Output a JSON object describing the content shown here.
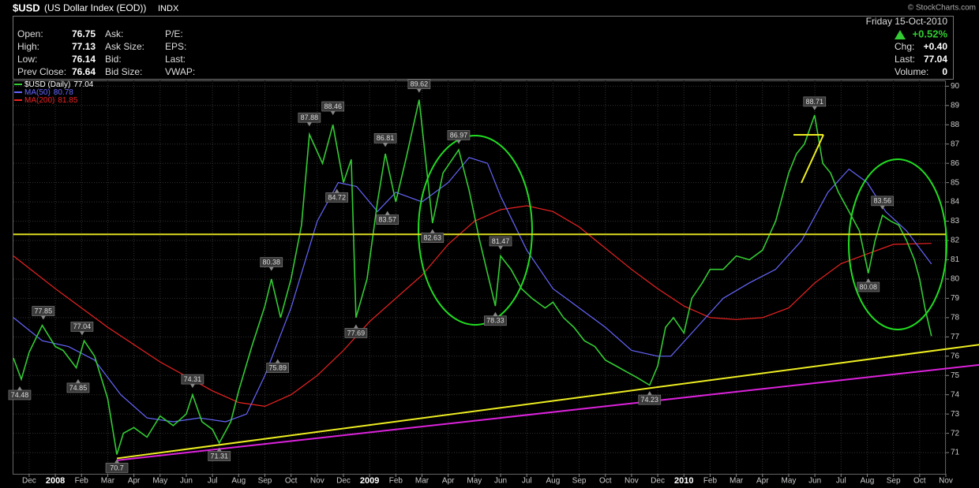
{
  "header": {
    "symbol": "$USD",
    "name": "(US Dollar Index (EOD))",
    "exchange": "INDX",
    "quote": [
      {
        "label": "Open:",
        "value": 76.75
      },
      {
        "label": "High:",
        "value": 77.13
      },
      {
        "label": "Low:",
        "value": 76.14
      },
      {
        "label": "Prev Close:",
        "value": 76.64
      }
    ],
    "fields_a": [
      "Ask:",
      "Ask Size:",
      "Bid:",
      "Bid Size:"
    ],
    "fields_b": [
      "P/E:",
      "EPS:",
      "Last:",
      "VWAP:"
    ],
    "date": "Friday  15-Oct-2010",
    "change_pct": "+0.52%",
    "stats": [
      {
        "label": "Chg:",
        "value": "+0.40"
      },
      {
        "label": "Last:",
        "value": "77.04"
      },
      {
        "label": "Volume:",
        "value": "0"
      }
    ],
    "watermark": "© StockCharts.com"
  },
  "chart_data": {
    "type": "line",
    "xlim": [
      -0.6,
      35.0
    ],
    "ylim": [
      69.9,
      90.3
    ],
    "yticks": [
      71,
      72,
      73,
      74,
      75,
      76,
      77,
      78,
      79,
      80,
      81,
      82,
      83,
      84,
      85,
      86,
      87,
      88,
      89,
      90
    ],
    "xticks": [
      {
        "value": 0,
        "label": "Dec"
      },
      {
        "value": 1,
        "label": "2008"
      },
      {
        "value": 2,
        "label": "Feb"
      },
      {
        "value": 3,
        "label": "Mar"
      },
      {
        "value": 4,
        "label": "Apr"
      },
      {
        "value": 5,
        "label": "May"
      },
      {
        "value": 6,
        "label": "Jun"
      },
      {
        "value": 7,
        "label": "Jul"
      },
      {
        "value": 8,
        "label": "Aug"
      },
      {
        "value": 9,
        "label": "Sep"
      },
      {
        "value": 10,
        "label": "Oct"
      },
      {
        "value": 11,
        "label": "Nov"
      },
      {
        "value": 12,
        "label": "Dec"
      },
      {
        "value": 13,
        "label": "2009"
      },
      {
        "value": 14,
        "label": "Feb"
      },
      {
        "value": 15,
        "label": "Mar"
      },
      {
        "value": 16,
        "label": "Apr"
      },
      {
        "value": 17,
        "label": "May"
      },
      {
        "value": 18,
        "label": "Jun"
      },
      {
        "value": 19,
        "label": "Jul"
      },
      {
        "value": 20,
        "label": "Aug"
      },
      {
        "value": 21,
        "label": "Sep"
      },
      {
        "value": 22,
        "label": "Oct"
      },
      {
        "value": 23,
        "label": "Nov"
      },
      {
        "value": 24,
        "label": "Dec"
      },
      {
        "value": 25,
        "label": "2010"
      },
      {
        "value": 26,
        "label": "Feb"
      },
      {
        "value": 27,
        "label": "Mar"
      },
      {
        "value": 28,
        "label": "Apr"
      },
      {
        "value": 29,
        "label": "May"
      },
      {
        "value": 30,
        "label": "Jun"
      },
      {
        "value": 31,
        "label": "Jul"
      },
      {
        "value": 32,
        "label": "Aug"
      },
      {
        "value": 33,
        "label": "Sep"
      },
      {
        "value": 34,
        "label": "Oct"
      },
      {
        "value": 35,
        "label": "Nov"
      }
    ],
    "grid": true,
    "series": [
      {
        "name": "$USD (Daily)",
        "last": 77.04,
        "color": "#33cc33",
        "x": [
          -0.6,
          -0.3,
          0.0,
          0.5,
          1.0,
          1.3,
          1.8,
          2.1,
          2.5,
          3.0,
          3.35,
          3.6,
          4.0,
          4.5,
          5.0,
          5.5,
          6.0,
          6.24,
          6.6,
          7.0,
          7.26,
          7.7,
          8.0,
          8.5,
          9.0,
          9.25,
          9.6,
          10.0,
          10.4,
          10.7,
          11.2,
          11.6,
          12.0,
          12.3,
          12.48,
          12.9,
          13.3,
          13.6,
          14.0,
          14.4,
          14.89,
          15.4,
          15.8,
          16.4,
          16.8,
          17.2,
          17.8,
          18.0,
          18.4,
          18.8,
          19.2,
          19.7,
          20.0,
          20.4,
          20.8,
          21.2,
          21.6,
          22.0,
          22.4,
          22.8,
          23.2,
          23.69,
          24.0,
          24.3,
          24.6,
          25.0,
          25.3,
          25.7,
          26.0,
          26.5,
          27.0,
          27.5,
          28.0,
          28.5,
          29.0,
          29.3,
          29.6,
          29.99,
          30.3,
          30.6,
          30.9,
          31.3,
          31.7,
          32.04,
          32.3,
          32.58,
          32.9,
          33.2,
          33.5,
          33.8,
          34.0,
          34.2,
          34.45
        ],
        "values": [
          75.9,
          74.8,
          76.2,
          77.6,
          76.5,
          76.3,
          75.4,
          76.8,
          76.0,
          73.8,
          70.9,
          72.0,
          72.3,
          71.8,
          72.9,
          72.4,
          73.0,
          74.0,
          72.6,
          72.2,
          71.5,
          72.6,
          74.2,
          76.5,
          78.6,
          80.0,
          78.0,
          80.0,
          82.8,
          87.5,
          86.0,
          88.0,
          85.0,
          86.2,
          78.0,
          80.0,
          84.0,
          86.5,
          84.0,
          86.3,
          89.3,
          82.9,
          85.5,
          86.7,
          84.6,
          82.0,
          78.6,
          81.2,
          80.5,
          79.5,
          79.0,
          78.5,
          78.8,
          78.0,
          77.5,
          76.8,
          76.5,
          75.8,
          75.5,
          75.2,
          74.9,
          74.5,
          75.5,
          77.5,
          78.0,
          77.2,
          79.0,
          79.8,
          80.5,
          80.5,
          81.2,
          81.0,
          81.5,
          83.0,
          85.5,
          86.5,
          87.0,
          88.5,
          86.0,
          85.5,
          84.5,
          83.5,
          82.5,
          80.3,
          82.0,
          83.3,
          83.0,
          82.8,
          82.0,
          81.0,
          80.0,
          78.5,
          77.04
        ]
      },
      {
        "name": "MA(50)",
        "last": 80.78,
        "color": "#6666ff",
        "x": [
          -0.6,
          0.5,
          1.5,
          2.5,
          3.5,
          4.5,
          5.5,
          6.5,
          7.5,
          8.3,
          9.0,
          10.0,
          11.0,
          11.8,
          12.5,
          13.3,
          14.0,
          15.0,
          16.0,
          16.8,
          17.5,
          18.0,
          19.0,
          20.0,
          21.0,
          22.0,
          23.0,
          24.0,
          24.5,
          25.5,
          26.5,
          27.5,
          28.5,
          29.5,
          30.5,
          31.3,
          32.0,
          32.7,
          33.5,
          34.45
        ],
        "values": [
          78.0,
          76.8,
          76.5,
          75.8,
          74.0,
          72.8,
          72.6,
          72.8,
          72.6,
          73.0,
          75.0,
          78.5,
          83.0,
          85.0,
          84.8,
          83.5,
          84.5,
          84.0,
          85.0,
          86.3,
          86.0,
          84.3,
          81.5,
          79.5,
          78.5,
          77.5,
          76.3,
          76.0,
          76.0,
          77.5,
          79.0,
          79.8,
          80.5,
          82.0,
          84.5,
          85.7,
          85.0,
          83.5,
          82.5,
          80.78
        ]
      },
      {
        "name": "MA(200)",
        "last": 81.85,
        "color": "#ee2222",
        "x": [
          -0.6,
          1,
          3,
          5,
          7,
          8,
          9,
          10,
          11,
          12,
          13,
          14,
          15,
          16,
          17,
          18,
          19,
          20,
          21,
          22,
          23,
          24,
          25,
          26,
          27,
          28,
          29,
          30,
          31,
          32,
          33,
          34.45
        ],
        "values": [
          81.2,
          79.5,
          77.5,
          75.7,
          74.2,
          73.6,
          73.4,
          74.0,
          75.0,
          76.3,
          77.8,
          79.0,
          80.2,
          81.8,
          83.0,
          83.6,
          83.8,
          83.5,
          82.7,
          81.6,
          80.5,
          79.5,
          78.6,
          78.0,
          77.9,
          78.0,
          78.5,
          79.8,
          80.8,
          81.3,
          81.8,
          81.85
        ]
      }
    ],
    "overlays": [
      {
        "color": "#dddd22",
        "x": [
          -0.6,
          35.0
        ],
        "y": [
          82.32,
          82.32
        ]
      },
      {
        "color": "#eeee22",
        "x": [
          3.35,
          36.3
        ],
        "y": [
          70.7,
          76.6
        ]
      },
      {
        "color": "#dd22dd",
        "x": [
          3.35,
          36.3
        ],
        "y": [
          70.6,
          75.55
        ]
      }
    ],
    "annotations": [
      {
        "x": -0.36,
        "y": 74.48,
        "pos": "below"
      },
      {
        "x": 0.54,
        "y": 77.85,
        "pos": "above"
      },
      {
        "x": 2.02,
        "y": 77.04,
        "pos": "above"
      },
      {
        "x": 1.87,
        "y": 74.85,
        "pos": "below"
      },
      {
        "x": 3.35,
        "y": 70.7,
        "pos": "below"
      },
      {
        "x": 6.24,
        "y": 74.31,
        "pos": "above"
      },
      {
        "x": 7.26,
        "y": 71.31,
        "pos": "below"
      },
      {
        "x": 9.25,
        "y": 80.38,
        "pos": "above"
      },
      {
        "x": 9.49,
        "y": 75.89,
        "pos": "below"
      },
      {
        "x": 10.7,
        "y": 87.88,
        "pos": "above"
      },
      {
        "x": 11.6,
        "y": 88.46,
        "pos": "above"
      },
      {
        "x": 11.75,
        "y": 84.72,
        "pos": "below"
      },
      {
        "x": 12.48,
        "y": 77.69,
        "pos": "below"
      },
      {
        "x": 13.6,
        "y": 86.81,
        "pos": "above"
      },
      {
        "x": 13.68,
        "y": 83.57,
        "pos": "below"
      },
      {
        "x": 14.89,
        "y": 89.62,
        "pos": "above"
      },
      {
        "x": 15.4,
        "y": 82.63,
        "pos": "below"
      },
      {
        "x": 16.4,
        "y": 86.97,
        "pos": "above"
      },
      {
        "x": 18.0,
        "y": 81.47,
        "pos": "above"
      },
      {
        "x": 17.8,
        "y": 78.33,
        "pos": "below"
      },
      {
        "x": 23.69,
        "y": 74.23,
        "pos": "below"
      },
      {
        "x": 29.99,
        "y": 88.71,
        "pos": "above"
      },
      {
        "x": 32.58,
        "y": 83.56,
        "pos": "above"
      },
      {
        "x": 32.04,
        "y": 80.08,
        "pos": "below"
      }
    ]
  }
}
